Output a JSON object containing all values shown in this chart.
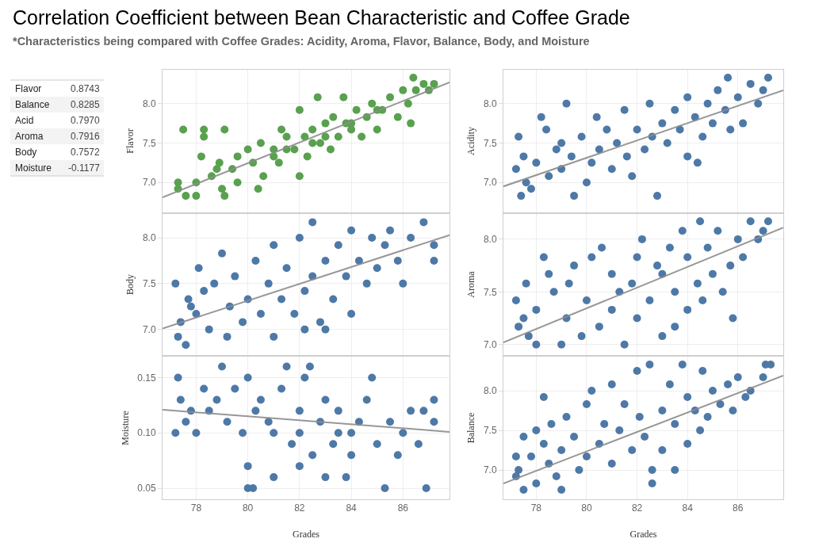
{
  "chart_data": [
    {
      "type": "other",
      "title": "Correlation Coefficient between Bean Characteristic and Coffee Grade",
      "subtitle": "*Characteristics being compared with Coffee Grades: Acidity, Aroma, Flavor, Balance, Body, and Moisture",
      "annotations": [
        "Flavor",
        "0.8743",
        "Balance",
        "0.8285",
        "Acid",
        "0.7970",
        "Aroma",
        "0.7916",
        "Body",
        "0.7572",
        "Moisture",
        "-0.1177"
      ]
    },
    {
      "type": "scatter",
      "ylabel": "Flavor",
      "xlim": [
        76.7,
        87.8
      ],
      "ylim": [
        6.62,
        8.43
      ],
      "xticks": [
        78,
        80,
        82,
        84,
        86
      ],
      "yticks": [
        {
          "value": 7,
          "label": "7.0"
        },
        {
          "value": 7.5,
          "label": "7.5"
        },
        {
          "value": 8,
          "label": "8.0"
        }
      ],
      "grid": true,
      "marker": "circle",
      "tick_labels": "y",
      "series": [
        {
          "color": "#59a14f",
          "x": [
            77.3,
            77.3,
            77.6,
            77.5,
            78.0,
            78.0,
            78.2,
            78.3,
            78.3,
            78.6,
            78.8,
            78.9,
            79.0,
            79.1,
            79.1,
            79.4,
            79.6,
            79.6,
            80.0,
            80.2,
            80.4,
            80.5,
            80.6,
            81.0,
            81.2,
            81.3,
            81.5,
            81.8,
            82.0,
            82.0,
            82.2,
            82.3,
            82.5,
            82.7,
            82.8,
            83.0,
            83.2,
            83.3,
            83.5,
            83.7,
            83.8,
            84.0,
            84.2,
            84.4,
            84.6,
            84.8,
            85.0,
            85.2,
            85.5,
            85.8,
            86.0,
            86.2,
            86.3,
            86.5,
            86.8,
            87.0,
            87.2,
            86.4,
            81.0,
            81.5,
            82.5,
            83.0,
            84.0,
            85.0
          ],
          "values": [
            6.92,
            7.0,
            6.83,
            7.67,
            6.83,
            7.0,
            7.33,
            7.58,
            7.67,
            7.08,
            7.17,
            7.25,
            6.92,
            7.67,
            6.83,
            7.17,
            7.33,
            7.0,
            7.42,
            7.25,
            6.92,
            7.5,
            7.08,
            7.42,
            7.25,
            7.67,
            7.58,
            7.42,
            7.08,
            7.92,
            7.58,
            7.33,
            7.67,
            8.08,
            7.5,
            7.75,
            7.42,
            7.83,
            7.58,
            8.08,
            7.75,
            7.67,
            7.92,
            7.58,
            7.83,
            8.0,
            7.67,
            7.92,
            8.08,
            7.83,
            8.17,
            8.0,
            7.75,
            8.17,
            8.25,
            8.17,
            8.25,
            8.33,
            7.33,
            7.42,
            7.5,
            7.58,
            7.75,
            7.92
          ]
        },
        {
          "type": "line",
          "color": "#8c8c8c",
          "x": [
            76.7,
            87.8
          ],
          "values": [
            6.81,
            8.27
          ],
          "marker": "none"
        }
      ]
    },
    {
      "type": "scatter",
      "ylabel": "Acidity",
      "xlim": [
        76.7,
        87.8
      ],
      "ylim": [
        6.62,
        8.43
      ],
      "xticks": [
        78,
        80,
        82,
        84,
        86
      ],
      "yticks": [
        {
          "value": 7,
          "label": "7.0"
        },
        {
          "value": 7.5,
          "label": "7.5"
        },
        {
          "value": 8,
          "label": "8.0"
        }
      ],
      "grid": true,
      "marker": "circle",
      "tick_labels": "y",
      "series": [
        {
          "color": "#4e79a7",
          "x": [
            77.2,
            77.3,
            77.4,
            77.5,
            77.6,
            77.8,
            78.0,
            78.2,
            78.4,
            78.5,
            78.8,
            79.0,
            79.0,
            79.2,
            79.4,
            79.5,
            79.8,
            80.0,
            80.2,
            80.4,
            80.5,
            80.8,
            81.0,
            81.2,
            81.5,
            81.6,
            81.8,
            82.0,
            82.3,
            82.5,
            82.6,
            82.8,
            83.0,
            83.2,
            83.5,
            83.7,
            84.0,
            84.0,
            84.3,
            84.6,
            84.8,
            85.0,
            85.2,
            85.5,
            85.7,
            86.0,
            86.2,
            86.5,
            86.8,
            87.0,
            87.2,
            85.6,
            84.4
          ],
          "values": [
            7.17,
            7.58,
            6.83,
            7.33,
            7.0,
            6.92,
            7.25,
            7.83,
            7.67,
            7.08,
            7.42,
            7.17,
            7.5,
            8.0,
            7.33,
            6.83,
            7.58,
            7.0,
            7.25,
            7.83,
            7.42,
            7.67,
            7.17,
            7.5,
            7.92,
            7.33,
            7.08,
            7.67,
            7.42,
            8.0,
            7.58,
            6.83,
            7.75,
            7.5,
            7.92,
            7.67,
            7.33,
            8.08,
            7.83,
            7.58,
            8.0,
            7.75,
            8.17,
            7.92,
            7.67,
            8.08,
            7.75,
            8.25,
            8.0,
            8.17,
            8.33,
            8.33,
            7.25
          ]
        },
        {
          "type": "line",
          "color": "#8c8c8c",
          "x": [
            76.7,
            87.8
          ],
          "values": [
            6.95,
            8.17
          ],
          "marker": "none"
        }
      ]
    },
    {
      "type": "scatter",
      "ylabel": "Body",
      "xlim": [
        76.7,
        87.8
      ],
      "ylim": [
        6.72,
        8.26
      ],
      "xticks": [
        78,
        80,
        82,
        84,
        86
      ],
      "yticks": [
        {
          "value": 7,
          "label": "7.0"
        },
        {
          "value": 7.5,
          "label": "7.5"
        },
        {
          "value": 8,
          "label": "8.0"
        }
      ],
      "grid": true,
      "marker": "circle",
      "tick_labels": "y",
      "series": [
        {
          "color": "#4e79a7",
          "x": [
            77.2,
            77.3,
            77.4,
            77.6,
            77.7,
            77.8,
            78.0,
            78.1,
            78.3,
            78.5,
            78.7,
            79.0,
            79.2,
            79.3,
            79.5,
            79.8,
            80.0,
            80.3,
            80.5,
            80.8,
            81.0,
            81.0,
            81.3,
            81.5,
            81.8,
            82.0,
            82.2,
            82.5,
            82.5,
            82.8,
            83.0,
            83.3,
            83.5,
            83.8,
            84.0,
            84.0,
            84.3,
            84.6,
            84.8,
            85.0,
            85.3,
            85.5,
            85.8,
            86.0,
            86.3,
            86.8,
            87.2,
            87.2,
            83.0,
            82.2
          ],
          "values": [
            7.5,
            6.92,
            7.08,
            6.83,
            7.33,
            7.25,
            7.17,
            7.67,
            7.42,
            7.0,
            7.5,
            7.83,
            6.92,
            7.25,
            7.58,
            7.08,
            7.33,
            7.75,
            7.17,
            7.5,
            7.92,
            6.92,
            7.33,
            7.67,
            7.17,
            8.0,
            7.42,
            7.58,
            8.17,
            7.08,
            7.75,
            7.33,
            7.92,
            7.58,
            8.08,
            7.17,
            7.75,
            7.5,
            8.0,
            7.67,
            7.92,
            8.08,
            7.75,
            7.5,
            8.0,
            8.17,
            7.92,
            7.75,
            7.0,
            7.0
          ]
        },
        {
          "type": "line",
          "color": "#8c8c8c",
          "x": [
            76.7,
            87.8
          ],
          "values": [
            7.01,
            8.03
          ],
          "marker": "none"
        }
      ]
    },
    {
      "type": "scatter",
      "ylabel": "Aroma",
      "xlim": [
        76.7,
        87.8
      ],
      "ylim": [
        6.9,
        8.24
      ],
      "xticks": [
        78,
        80,
        82,
        84,
        86
      ],
      "yticks": [
        {
          "value": 7,
          "label": "7.0"
        },
        {
          "value": 7.5,
          "label": "7.5"
        },
        {
          "value": 8,
          "label": "8.0"
        }
      ],
      "grid": true,
      "marker": "circle",
      "tick_labels": "y",
      "series": [
        {
          "color": "#4e79a7",
          "x": [
            77.2,
            77.3,
            77.5,
            77.6,
            77.7,
            78.0,
            78.0,
            78.3,
            78.5,
            78.7,
            79.0,
            79.2,
            79.3,
            79.5,
            79.8,
            80.0,
            80.2,
            80.5,
            80.6,
            81.0,
            81.0,
            81.3,
            81.5,
            81.8,
            82.0,
            82.0,
            82.2,
            82.5,
            82.8,
            83.0,
            83.0,
            83.3,
            83.5,
            83.8,
            84.0,
            84.0,
            84.4,
            84.5,
            84.8,
            85.0,
            85.2,
            85.4,
            85.7,
            86.0,
            86.2,
            86.5,
            86.8,
            87.2,
            87.0,
            85.8,
            83.5,
            84.6
          ],
          "values": [
            7.42,
            7.17,
            7.25,
            7.58,
            7.08,
            7.33,
            7.0,
            7.83,
            7.67,
            7.5,
            7.0,
            7.25,
            7.58,
            7.75,
            7.08,
            7.42,
            7.83,
            7.17,
            7.92,
            7.33,
            7.67,
            7.5,
            7.0,
            7.58,
            7.83,
            7.25,
            8.0,
            7.42,
            7.75,
            7.08,
            7.67,
            7.92,
            7.5,
            8.08,
            7.33,
            7.83,
            7.58,
            8.17,
            7.92,
            7.67,
            8.08,
            7.5,
            7.75,
            8.0,
            7.83,
            8.17,
            8.0,
            8.17,
            8.08,
            7.25,
            7.17,
            7.42
          ]
        },
        {
          "type": "line",
          "color": "#8c8c8c",
          "x": [
            76.7,
            87.8
          ],
          "values": [
            7.02,
            8.11
          ],
          "marker": "none"
        }
      ]
    },
    {
      "type": "scatter",
      "ylabel": "Moisture",
      "xlabel": "Grades",
      "xlim": [
        76.7,
        87.8
      ],
      "ylim": [
        0.04,
        0.169
      ],
      "xticks": [
        78,
        80,
        82,
        84,
        86
      ],
      "yticks": [
        {
          "value": 0.05,
          "label": "0.05"
        },
        {
          "value": 0.1,
          "label": "0.10"
        },
        {
          "value": 0.15,
          "label": "0.15"
        }
      ],
      "grid": true,
      "marker": "circle",
      "series": [
        {
          "color": "#4e79a7",
          "x": [
            77.2,
            77.3,
            77.4,
            77.6,
            77.8,
            78.0,
            78.3,
            78.5,
            78.8,
            79.0,
            79.2,
            79.5,
            79.8,
            80.0,
            80.0,
            80.0,
            80.2,
            80.3,
            80.5,
            80.8,
            81.0,
            81.0,
            81.3,
            81.5,
            81.7,
            82.0,
            82.0,
            82.2,
            82.4,
            82.5,
            82.8,
            83.0,
            83.0,
            83.3,
            83.5,
            83.8,
            84.0,
            84.0,
            84.3,
            84.6,
            84.8,
            85.0,
            85.3,
            85.5,
            85.8,
            86.0,
            86.3,
            86.6,
            86.9,
            87.2,
            87.2,
            86.8,
            82.0,
            83.5
          ],
          "values": [
            0.1,
            0.15,
            0.13,
            0.11,
            0.12,
            0.1,
            0.14,
            0.12,
            0.13,
            0.16,
            0.11,
            0.14,
            0.1,
            0.15,
            0.07,
            0.05,
            0.05,
            0.12,
            0.13,
            0.11,
            0.1,
            0.06,
            0.14,
            0.16,
            0.09,
            0.12,
            0.07,
            0.15,
            0.16,
            0.08,
            0.11,
            0.13,
            0.06,
            0.09,
            0.12,
            0.06,
            0.1,
            0.08,
            0.11,
            0.13,
            0.15,
            0.09,
            0.05,
            0.11,
            0.08,
            0.1,
            0.12,
            0.09,
            0.05,
            0.13,
            0.11,
            0.12,
            0.1,
            0.1
          ]
        },
        {
          "type": "line",
          "color": "#8c8c8c",
          "x": [
            76.7,
            87.8
          ],
          "values": [
            0.121,
            0.101
          ],
          "marker": "none"
        }
      ]
    },
    {
      "type": "scatter",
      "ylabel": "Balance",
      "xlabel": "Grades",
      "xlim": [
        76.7,
        87.8
      ],
      "ylim": [
        6.63,
        8.43
      ],
      "xticks": [
        78,
        80,
        82,
        84,
        86
      ],
      "yticks": [
        {
          "value": 7,
          "label": "7.0"
        },
        {
          "value": 7.5,
          "label": "7.5"
        },
        {
          "value": 8,
          "label": "8.0"
        }
      ],
      "grid": true,
      "marker": "circle",
      "series": [
        {
          "color": "#4e79a7",
          "x": [
            77.2,
            77.2,
            77.3,
            77.5,
            77.5,
            77.8,
            78.0,
            78.0,
            78.3,
            78.3,
            78.5,
            78.6,
            78.8,
            79.0,
            79.0,
            79.2,
            79.5,
            79.7,
            80.0,
            80.0,
            80.2,
            80.5,
            80.7,
            81.0,
            81.0,
            81.3,
            81.5,
            81.8,
            82.0,
            82.1,
            82.3,
            82.5,
            82.6,
            82.6,
            83.0,
            83.0,
            83.3,
            83.5,
            83.5,
            83.8,
            84.0,
            84.0,
            84.3,
            84.6,
            84.8,
            85.0,
            85.3,
            85.6,
            85.8,
            86.0,
            86.3,
            86.5,
            87.0,
            87.3,
            87.1,
            84.5
          ],
          "values": [
            7.17,
            6.92,
            7.0,
            6.75,
            7.42,
            7.17,
            6.83,
            7.5,
            7.92,
            7.33,
            7.08,
            7.58,
            6.92,
            6.75,
            7.25,
            7.67,
            7.42,
            7.0,
            7.83,
            7.17,
            8.0,
            7.33,
            7.58,
            7.08,
            8.08,
            7.5,
            7.83,
            7.25,
            8.25,
            7.67,
            7.42,
            8.33,
            7.0,
            6.83,
            7.75,
            7.25,
            8.08,
            7.58,
            7.0,
            8.33,
            7.92,
            7.33,
            7.75,
            8.25,
            7.67,
            8.0,
            7.83,
            8.08,
            7.75,
            8.17,
            7.92,
            8.0,
            8.17,
            8.33,
            8.33,
            7.5
          ]
        },
        {
          "type": "line",
          "color": "#8c8c8c",
          "x": [
            76.7,
            87.8
          ],
          "values": [
            6.83,
            8.19
          ],
          "marker": "none"
        }
      ]
    }
  ]
}
